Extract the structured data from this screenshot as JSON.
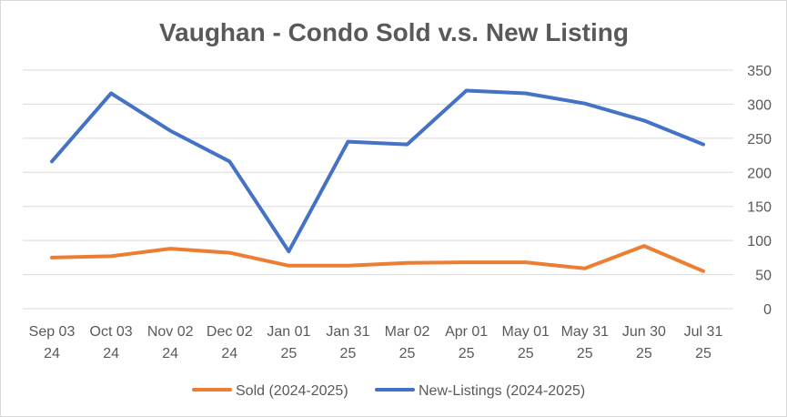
{
  "chart_data": {
    "type": "line",
    "title": "Vaughan - Condo Sold v.s. New Listing",
    "xlabel": "",
    "ylabel": "",
    "categories": [
      [
        "Sep 03",
        "24"
      ],
      [
        "Oct 03",
        "24"
      ],
      [
        "Nov 02",
        "24"
      ],
      [
        "Dec 02",
        "24"
      ],
      [
        "Jan 01",
        "25"
      ],
      [
        "Jan 31",
        "25"
      ],
      [
        "Mar 02",
        "25"
      ],
      [
        "Apr 01",
        "25"
      ],
      [
        "May 01",
        "25"
      ],
      [
        "May 31",
        "25"
      ],
      [
        "Jun 30",
        "25"
      ],
      [
        "Jul 31",
        "25"
      ]
    ],
    "ylim": [
      0,
      350
    ],
    "yticks": [
      0,
      50,
      100,
      150,
      200,
      250,
      300,
      350
    ],
    "y_axis_side": "right",
    "grid": true,
    "legend_position": "bottom",
    "series": [
      {
        "name": "Sold (2024-2025)",
        "color": "#ed7d31",
        "values": [
          75,
          77,
          88,
          82,
          63,
          63,
          67,
          68,
          68,
          59,
          92,
          55
        ]
      },
      {
        "name": "New-Listings (2024-2025)",
        "color": "#4472c4",
        "values": [
          216,
          316,
          261,
          216,
          84,
          245,
          241,
          320,
          316,
          301,
          276,
          241
        ]
      }
    ]
  }
}
